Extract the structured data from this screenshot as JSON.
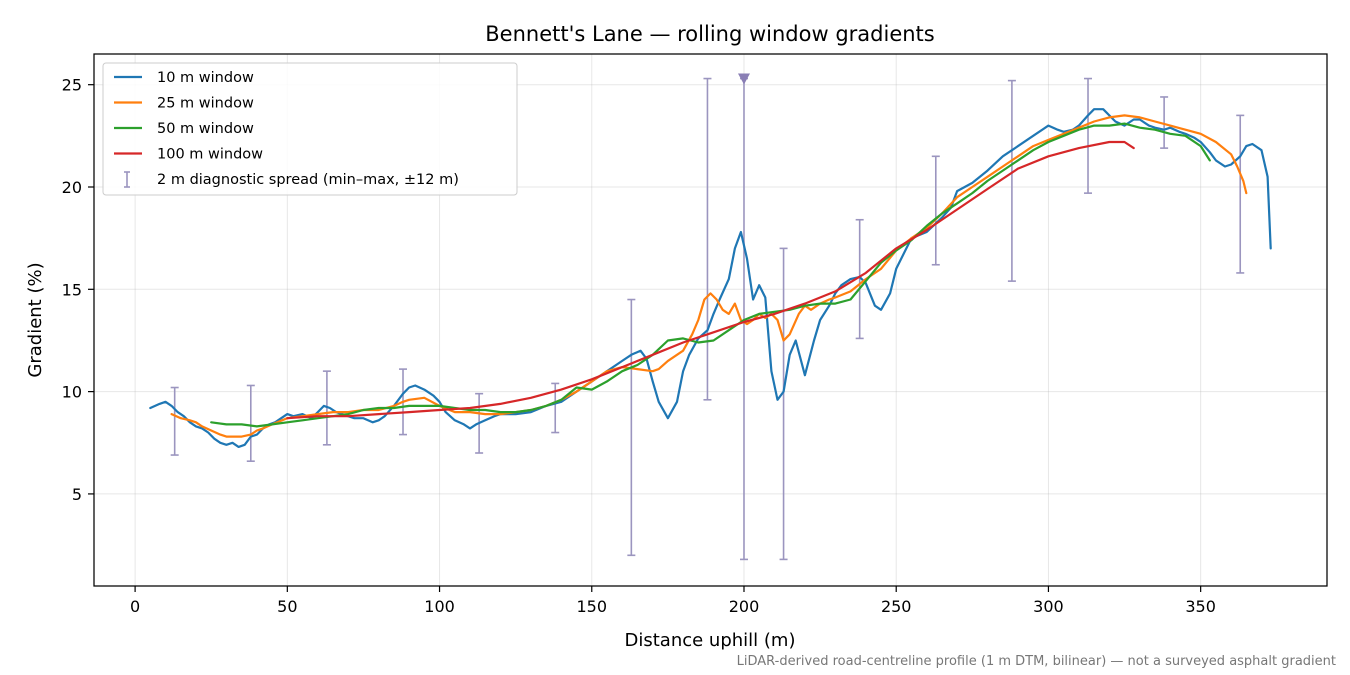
{
  "chart_data": {
    "type": "line",
    "title": "Bennett's Lane — rolling window gradients",
    "xlabel": "Distance uphill (m)",
    "ylabel": "Gradient (%)",
    "xlim": [
      -13.5,
      391.5
    ],
    "ylim": [
      0.5,
      26.5
    ],
    "xticks": [
      0,
      50,
      100,
      150,
      200,
      250,
      300,
      350
    ],
    "yticks": [
      5,
      10,
      15,
      20,
      25
    ],
    "grid": true,
    "legend_position": "top-left",
    "footnote": "LiDAR-derived road-centreline profile (1 m DTM, bilinear) — not a surveyed asphalt gradient",
    "series": [
      {
        "name": "10 m window",
        "color": "#1f77b4",
        "x": [
          5,
          8,
          10,
          12,
          14,
          16,
          18,
          20,
          22,
          24,
          26,
          28,
          30,
          32,
          34,
          36,
          38,
          40,
          42,
          44,
          46,
          48,
          50,
          52,
          55,
          58,
          60,
          62,
          64,
          66,
          68,
          70,
          72,
          75,
          78,
          80,
          82,
          85,
          88,
          90,
          92,
          95,
          98,
          100,
          102,
          105,
          108,
          110,
          112,
          115,
          118,
          120,
          122,
          125,
          130,
          135,
          140,
          145,
          150,
          155,
          160,
          163,
          166,
          168,
          170,
          172,
          175,
          178,
          180,
          182,
          185,
          188,
          190,
          192,
          195,
          197,
          199,
          201,
          203,
          205,
          207,
          209,
          211,
          213,
          215,
          217,
          220,
          223,
          225,
          228,
          230,
          232,
          235,
          238,
          240,
          243,
          245,
          248,
          250,
          255,
          260,
          265,
          268,
          270,
          275,
          280,
          285,
          290,
          295,
          300,
          303,
          305,
          308,
          310,
          313,
          315,
          318,
          320,
          322,
          325,
          328,
          330,
          333,
          335,
          338,
          340,
          343,
          345,
          348,
          350,
          353,
          355,
          358,
          360,
          363,
          365,
          367,
          370,
          372,
          373
        ],
        "y": [
          9.2,
          9.4,
          9.5,
          9.3,
          9.0,
          8.8,
          8.5,
          8.3,
          8.2,
          8.0,
          7.7,
          7.5,
          7.4,
          7.5,
          7.3,
          7.4,
          7.8,
          7.9,
          8.2,
          8.4,
          8.5,
          8.7,
          8.9,
          8.8,
          8.9,
          8.7,
          9.0,
          9.3,
          9.2,
          9.0,
          8.9,
          8.8,
          8.7,
          8.7,
          8.5,
          8.6,
          8.8,
          9.3,
          9.9,
          10.2,
          10.3,
          10.1,
          9.8,
          9.5,
          9.0,
          8.6,
          8.4,
          8.2,
          8.4,
          8.6,
          8.8,
          8.9,
          8.9,
          8.9,
          9.0,
          9.3,
          9.5,
          10.0,
          10.5,
          11.0,
          11.5,
          11.8,
          12.0,
          11.6,
          10.5,
          9.5,
          8.7,
          9.5,
          11.0,
          11.8,
          12.6,
          13.0,
          13.8,
          14.5,
          15.5,
          17.0,
          17.8,
          16.5,
          14.5,
          15.2,
          14.6,
          11.0,
          9.6,
          10.0,
          11.8,
          12.5,
          10.8,
          12.5,
          13.5,
          14.2,
          14.8,
          15.2,
          15.5,
          15.6,
          15.3,
          14.2,
          14.0,
          14.8,
          16.0,
          17.5,
          17.8,
          18.5,
          19.0,
          19.8,
          20.2,
          20.8,
          21.5,
          22.0,
          22.5,
          23.0,
          22.8,
          22.7,
          22.8,
          23.0,
          23.5,
          23.8,
          23.8,
          23.5,
          23.2,
          23.0,
          23.3,
          23.3,
          23.0,
          22.9,
          22.8,
          22.9,
          22.7,
          22.6,
          22.4,
          22.2,
          21.7,
          21.3,
          21.0,
          21.1,
          21.5,
          22.0,
          22.1,
          21.8,
          20.5,
          17.0
        ]
      },
      {
        "name": "25 m window",
        "color": "#ff7f0e",
        "x": [
          12,
          15,
          18,
          20,
          22,
          25,
          28,
          30,
          32,
          35,
          38,
          40,
          42,
          45,
          50,
          55,
          60,
          65,
          70,
          75,
          80,
          85,
          88,
          90,
          95,
          100,
          105,
          110,
          115,
          120,
          125,
          130,
          135,
          140,
          145,
          150,
          155,
          160,
          165,
          170,
          172,
          175,
          180,
          183,
          185,
          187,
          189,
          191,
          193,
          195,
          197,
          199,
          201,
          203,
          205,
          207,
          209,
          211,
          213,
          215,
          218,
          220,
          222,
          225,
          228,
          230,
          235,
          240,
          245,
          250,
          255,
          260,
          265,
          270,
          275,
          280,
          285,
          290,
          295,
          300,
          305,
          310,
          315,
          320,
          325,
          330,
          335,
          340,
          345,
          350,
          355,
          360,
          362,
          364,
          365
        ],
        "y": [
          8.9,
          8.7,
          8.6,
          8.5,
          8.3,
          8.1,
          7.9,
          7.8,
          7.8,
          7.8,
          7.9,
          8.1,
          8.2,
          8.4,
          8.7,
          8.8,
          8.9,
          9.0,
          9.0,
          9.1,
          9.1,
          9.3,
          9.5,
          9.6,
          9.7,
          9.3,
          9.0,
          9.0,
          8.9,
          8.9,
          9.0,
          9.1,
          9.3,
          9.6,
          10.0,
          10.5,
          11.0,
          11.2,
          11.1,
          11.0,
          11.1,
          11.5,
          12.0,
          12.8,
          13.5,
          14.5,
          14.8,
          14.5,
          14.0,
          13.8,
          14.3,
          13.5,
          13.3,
          13.5,
          13.8,
          13.6,
          13.8,
          13.5,
          12.5,
          12.8,
          13.8,
          14.2,
          14.0,
          14.3,
          14.5,
          14.6,
          14.9,
          15.5,
          16.0,
          16.9,
          17.5,
          18.0,
          18.7,
          19.5,
          20.0,
          20.5,
          21.0,
          21.5,
          22.0,
          22.3,
          22.6,
          22.9,
          23.2,
          23.4,
          23.5,
          23.4,
          23.2,
          23.0,
          22.8,
          22.6,
          22.2,
          21.6,
          21.0,
          20.3,
          19.7
        ]
      },
      {
        "name": "50 m window",
        "color": "#2ca02c",
        "x": [
          25,
          30,
          35,
          40,
          45,
          50,
          55,
          60,
          65,
          70,
          75,
          80,
          85,
          90,
          95,
          100,
          105,
          110,
          115,
          120,
          125,
          130,
          135,
          140,
          145,
          150,
          155,
          160,
          165,
          170,
          175,
          180,
          185,
          190,
          195,
          200,
          205,
          210,
          215,
          220,
          225,
          230,
          235,
          240,
          245,
          250,
          255,
          260,
          265,
          270,
          275,
          280,
          285,
          290,
          295,
          300,
          305,
          310,
          315,
          320,
          325,
          330,
          335,
          340,
          345,
          350,
          353
        ],
        "y": [
          8.5,
          8.4,
          8.4,
          8.3,
          8.4,
          8.5,
          8.6,
          8.7,
          8.8,
          8.9,
          9.1,
          9.2,
          9.2,
          9.3,
          9.3,
          9.3,
          9.2,
          9.1,
          9.1,
          9.0,
          9.0,
          9.1,
          9.3,
          9.6,
          10.2,
          10.1,
          10.5,
          11.0,
          11.3,
          11.8,
          12.5,
          12.6,
          12.4,
          12.5,
          13.0,
          13.5,
          13.8,
          13.9,
          14.0,
          14.2,
          14.3,
          14.3,
          14.5,
          15.4,
          16.3,
          16.9,
          17.4,
          18.1,
          18.7,
          19.2,
          19.7,
          20.3,
          20.8,
          21.3,
          21.8,
          22.2,
          22.5,
          22.8,
          23.0,
          23.0,
          23.1,
          22.9,
          22.8,
          22.6,
          22.5,
          22.0,
          21.3
        ]
      },
      {
        "name": "100 m window",
        "color": "#d62728",
        "x": [
          50,
          60,
          70,
          80,
          90,
          100,
          110,
          120,
          130,
          140,
          150,
          160,
          170,
          180,
          190,
          200,
          210,
          220,
          230,
          240,
          250,
          260,
          270,
          280,
          290,
          300,
          310,
          320,
          325,
          328
        ],
        "y": [
          8.7,
          8.8,
          8.8,
          8.9,
          9.0,
          9.1,
          9.2,
          9.4,
          9.7,
          10.1,
          10.6,
          11.2,
          11.8,
          12.4,
          12.9,
          13.4,
          13.8,
          14.3,
          14.9,
          15.8,
          17.0,
          17.9,
          18.9,
          19.9,
          20.9,
          21.5,
          21.9,
          22.2,
          22.2,
          21.9
        ]
      },
      {
        "name": "2 m diagnostic spread (min–max, ±12 m)",
        "type": "errorbar",
        "color": "#9b95bf",
        "x": [
          13,
          38,
          63,
          88,
          113,
          138,
          163,
          188,
          200,
          213,
          238,
          263,
          288,
          313,
          338,
          363
        ],
        "ymin": [
          6.9,
          6.6,
          7.4,
          7.9,
          7.0,
          8.0,
          2.0,
          9.6,
          1.8,
          1.8,
          12.6,
          16.2,
          15.4,
          19.7,
          21.9,
          15.8
        ],
        "ymax": [
          10.2,
          10.3,
          11.0,
          11.1,
          9.9,
          10.4,
          14.5,
          25.3,
          25.3,
          17.0,
          18.4,
          21.5,
          25.2,
          25.3,
          24.4,
          23.5
        ],
        "marker": {
          "x": 200,
          "y": 25.3,
          "symbol": "triangle-down"
        }
      }
    ]
  }
}
